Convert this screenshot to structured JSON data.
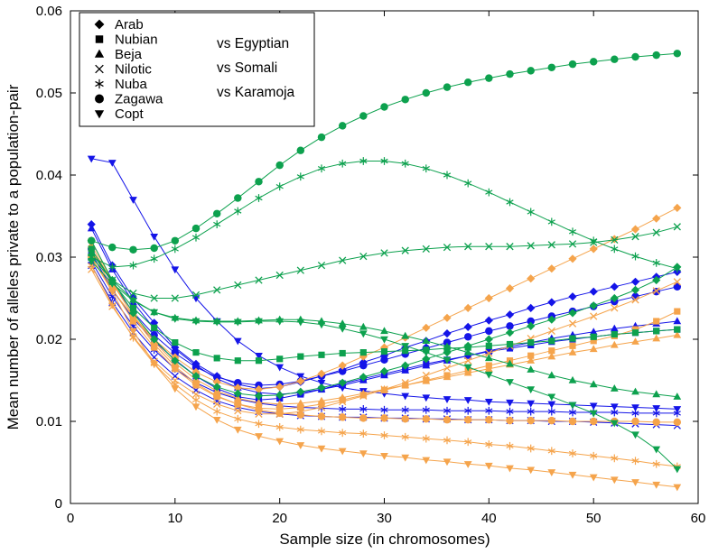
{
  "chart_data": {
    "type": "line",
    "title": "",
    "xlabel": "Sample size (in chromosomes)",
    "ylabel": "Mean number of alleles private to a population-pair",
    "xlim": [
      0,
      60
    ],
    "ylim": [
      0,
      0.06
    ],
    "grid": false,
    "xticks": [
      0,
      10,
      20,
      30,
      40,
      50,
      60
    ],
    "xtick_labels": [
      "0",
      "10",
      "20",
      "30",
      "40",
      "50",
      "60"
    ],
    "yticks": [
      0,
      0.01,
      0.02,
      0.03,
      0.04,
      0.05,
      0.06
    ],
    "ytick_labels": [
      "0",
      "0.01",
      "0.02",
      "0.03",
      "0.04",
      "0.05",
      "0.06"
    ],
    "colors": {
      "egyptian": "#1414e8",
      "somali": "#f5a44c",
      "karamoja": "#0da14e",
      "legend_marker": "#000000"
    },
    "legend": {
      "position": "top-left",
      "populations": [
        {
          "label": "Arab",
          "marker": "diamond"
        },
        {
          "label": "Nubian",
          "marker": "square"
        },
        {
          "label": "Beja",
          "marker": "triangle-up"
        },
        {
          "label": "Nilotic",
          "marker": "x"
        },
        {
          "label": "Nuba",
          "marker": "asterisk"
        },
        {
          "label": "Zagawa",
          "marker": "circle"
        },
        {
          "label": "Copt",
          "marker": "triangle-down"
        }
      ],
      "comparisons": [
        {
          "label": "vs Egyptian",
          "color": "#1414e8"
        },
        {
          "label": "vs Somali",
          "color": "#f5a44c"
        },
        {
          "label": "vs Karamoja",
          "color": "#0da14e"
        }
      ]
    },
    "x": [
      2,
      4,
      6,
      8,
      10,
      12,
      14,
      16,
      18,
      20,
      22,
      24,
      26,
      28,
      30,
      32,
      34,
      36,
      38,
      40,
      42,
      44,
      46,
      48,
      50,
      52,
      54,
      56,
      58
    ],
    "series": [
      {
        "name": "Arab vs Egyptian",
        "marker": "diamond",
        "color": "#1414e8",
        "values": [
          0.034,
          0.029,
          0.025,
          0.022,
          0.019,
          0.017,
          0.0155,
          0.0145,
          0.014,
          0.0142,
          0.0148,
          0.0155,
          0.0163,
          0.0172,
          0.018,
          0.019,
          0.0198,
          0.0207,
          0.0215,
          0.0223,
          0.023,
          0.0238,
          0.0245,
          0.0252,
          0.0258,
          0.0264,
          0.027,
          0.0276,
          0.0282
        ]
      },
      {
        "name": "Nubian vs Egyptian",
        "marker": "square",
        "color": "#1414e8",
        "values": [
          0.0305,
          0.026,
          0.0225,
          0.0198,
          0.0175,
          0.0155,
          0.014,
          0.013,
          0.0126,
          0.0128,
          0.0133,
          0.0139,
          0.0146,
          0.0152,
          0.0158,
          0.0164,
          0.017,
          0.0175,
          0.018,
          0.0185,
          0.0189,
          0.0193,
          0.0197,
          0.02,
          0.0203,
          0.0206,
          0.0208,
          0.021,
          0.0212
        ]
      },
      {
        "name": "Beja vs Egyptian",
        "marker": "triangle-up",
        "color": "#1414e8",
        "values": [
          0.0335,
          0.0285,
          0.0245,
          0.0213,
          0.0188,
          0.0168,
          0.0152,
          0.0141,
          0.0135,
          0.0133,
          0.0135,
          0.0139,
          0.0144,
          0.015,
          0.0156,
          0.0162,
          0.0168,
          0.0174,
          0.018,
          0.0186,
          0.0191,
          0.0196,
          0.0201,
          0.0205,
          0.0209,
          0.0213,
          0.0216,
          0.0219,
          0.0222
        ]
      },
      {
        "name": "Nilotic vs Egyptian",
        "marker": "x",
        "color": "#1414e8",
        "values": [
          0.029,
          0.0245,
          0.0208,
          0.0178,
          0.0155,
          0.0138,
          0.0125,
          0.0117,
          0.0112,
          0.0109,
          0.0107,
          0.0106,
          0.0105,
          0.0105,
          0.0104,
          0.0104,
          0.0103,
          0.0103,
          0.0102,
          0.0102,
          0.0101,
          0.0101,
          0.01,
          0.01,
          0.0099,
          0.0098,
          0.0097,
          0.0096,
          0.0095
        ]
      },
      {
        "name": "Nuba vs Egyptian",
        "marker": "asterisk",
        "color": "#1414e8",
        "values": [
          0.0295,
          0.0252,
          0.0216,
          0.0187,
          0.0164,
          0.0147,
          0.0135,
          0.0127,
          0.0122,
          0.0119,
          0.0117,
          0.0116,
          0.0115,
          0.0115,
          0.0114,
          0.0114,
          0.0114,
          0.0113,
          0.0113,
          0.0113,
          0.0112,
          0.0112,
          0.0112,
          0.0111,
          0.0111,
          0.0111,
          0.011,
          0.011,
          0.011
        ]
      },
      {
        "name": "Zagawa vs Egyptian",
        "marker": "circle",
        "color": "#1414e8",
        "values": [
          0.031,
          0.0268,
          0.0233,
          0.0205,
          0.0183,
          0.0166,
          0.0154,
          0.0147,
          0.0144,
          0.0145,
          0.0149,
          0.0155,
          0.0161,
          0.0168,
          0.0175,
          0.0182,
          0.0189,
          0.0196,
          0.0203,
          0.021,
          0.0216,
          0.0222,
          0.0228,
          0.0234,
          0.024,
          0.0246,
          0.0252,
          0.0258,
          0.0264
        ]
      },
      {
        "name": "Copt vs Egyptian",
        "marker": "triangle-down",
        "color": "#1414e8",
        "values": [
          0.042,
          0.0415,
          0.037,
          0.0325,
          0.0285,
          0.025,
          0.0222,
          0.0198,
          0.018,
          0.0166,
          0.0155,
          0.0147,
          0.0141,
          0.0137,
          0.0134,
          0.0131,
          0.0129,
          0.0127,
          0.0126,
          0.0124,
          0.0123,
          0.0122,
          0.0121,
          0.012,
          0.0119,
          0.0118,
          0.0117,
          0.0116,
          0.0115
        ]
      },
      {
        "name": "Arab vs Somali",
        "marker": "diamond",
        "color": "#f5a44c",
        "values": [
          0.03,
          0.026,
          0.0228,
          0.02,
          0.0178,
          0.016,
          0.0148,
          0.0141,
          0.0139,
          0.0142,
          0.0149,
          0.0158,
          0.0168,
          0.0179,
          0.019,
          0.0202,
          0.0214,
          0.0226,
          0.0238,
          0.025,
          0.0262,
          0.0274,
          0.0286,
          0.0298,
          0.031,
          0.0322,
          0.0334,
          0.0347,
          0.036
        ]
      },
      {
        "name": "Nubian vs Somali",
        "marker": "square",
        "color": "#f5a44c",
        "values": [
          0.031,
          0.0262,
          0.0222,
          0.019,
          0.0164,
          0.0144,
          0.013,
          0.0121,
          0.0116,
          0.0115,
          0.0117,
          0.0121,
          0.0126,
          0.0132,
          0.0138,
          0.0144,
          0.015,
          0.0156,
          0.0162,
          0.0168,
          0.0174,
          0.018,
          0.0186,
          0.0192,
          0.0198,
          0.0204,
          0.0212,
          0.0222,
          0.0234
        ]
      },
      {
        "name": "Beja vs Somali",
        "marker": "triangle-up",
        "color": "#f5a44c",
        "values": [
          0.0315,
          0.0268,
          0.0229,
          0.0197,
          0.0171,
          0.0151,
          0.0137,
          0.0128,
          0.0123,
          0.0121,
          0.0122,
          0.0125,
          0.0129,
          0.0134,
          0.0139,
          0.0144,
          0.0149,
          0.0154,
          0.0159,
          0.0164,
          0.0169,
          0.0174,
          0.0179,
          0.0184,
          0.0188,
          0.0193,
          0.0197,
          0.0201,
          0.0205
        ]
      },
      {
        "name": "Nilotic vs Somali",
        "marker": "x",
        "color": "#f5a44c",
        "values": [
          0.0285,
          0.024,
          0.0203,
          0.0173,
          0.015,
          0.0133,
          0.0121,
          0.0113,
          0.0109,
          0.0109,
          0.0112,
          0.0117,
          0.0124,
          0.0131,
          0.0139,
          0.0147,
          0.0156,
          0.0165,
          0.0174,
          0.0183,
          0.0192,
          0.0201,
          0.021,
          0.0219,
          0.0228,
          0.0238,
          0.0248,
          0.0259,
          0.027
        ]
      },
      {
        "name": "Nuba vs Somali",
        "marker": "asterisk",
        "color": "#f5a44c",
        "values": [
          0.029,
          0.0242,
          0.0202,
          0.017,
          0.0145,
          0.0126,
          0.0112,
          0.0103,
          0.0097,
          0.0093,
          0.009,
          0.0088,
          0.0086,
          0.0085,
          0.0083,
          0.0081,
          0.0079,
          0.0077,
          0.0075,
          0.0072,
          0.007,
          0.0067,
          0.0064,
          0.0061,
          0.0058,
          0.0055,
          0.0052,
          0.0048,
          0.0045
        ]
      },
      {
        "name": "Zagawa vs Somali",
        "marker": "circle",
        "color": "#f5a44c",
        "values": [
          0.032,
          0.027,
          0.0228,
          0.0194,
          0.0167,
          0.0146,
          0.0131,
          0.0121,
          0.0114,
          0.011,
          0.0108,
          0.0106,
          0.0105,
          0.0104,
          0.0104,
          0.0103,
          0.0103,
          0.0102,
          0.0102,
          0.0102,
          0.0101,
          0.0101,
          0.0101,
          0.01,
          0.01,
          0.01,
          0.01,
          0.0099,
          0.0099
        ]
      },
      {
        "name": "Copt vs Somali",
        "marker": "triangle-down",
        "color": "#f5a44c",
        "values": [
          0.03,
          0.0258,
          0.021,
          0.017,
          0.014,
          0.0118,
          0.0102,
          0.009,
          0.0082,
          0.0076,
          0.0071,
          0.0067,
          0.0064,
          0.0061,
          0.0058,
          0.0056,
          0.0053,
          0.0051,
          0.0048,
          0.0046,
          0.0043,
          0.0041,
          0.0038,
          0.0035,
          0.0032,
          0.0029,
          0.0026,
          0.0023,
          0.002
        ]
      },
      {
        "name": "Arab vs Karamoja",
        "marker": "diamond",
        "color": "#0da14e",
        "values": [
          0.032,
          0.0272,
          0.0232,
          0.02,
          0.0174,
          0.0155,
          0.0142,
          0.0134,
          0.0131,
          0.0132,
          0.0136,
          0.0141,
          0.0147,
          0.0154,
          0.0161,
          0.0168,
          0.0176,
          0.0184,
          0.0192,
          0.02,
          0.0208,
          0.0216,
          0.0224,
          0.0232,
          0.0241,
          0.025,
          0.026,
          0.0272,
          0.0288
        ]
      },
      {
        "name": "Nubian vs Karamoja",
        "marker": "square",
        "color": "#0da14e",
        "values": [
          0.031,
          0.027,
          0.0238,
          0.0214,
          0.0196,
          0.0184,
          0.0177,
          0.0174,
          0.0174,
          0.0176,
          0.0179,
          0.0181,
          0.0183,
          0.0184,
          0.0185,
          0.0186,
          0.0187,
          0.0189,
          0.019,
          0.0192,
          0.0194,
          0.0196,
          0.0198,
          0.0201,
          0.0203,
          0.0206,
          0.0208,
          0.021,
          0.0212
        ]
      },
      {
        "name": "Beja vs Karamoja",
        "marker": "triangle-up",
        "color": "#0da14e",
        "values": [
          0.0305,
          0.0272,
          0.0248,
          0.0233,
          0.0226,
          0.0223,
          0.0222,
          0.0222,
          0.0223,
          0.0224,
          0.0224,
          0.0222,
          0.0219,
          0.0215,
          0.021,
          0.0204,
          0.0198,
          0.0191,
          0.0184,
          0.0177,
          0.017,
          0.0163,
          0.0156,
          0.015,
          0.0145,
          0.014,
          0.0136,
          0.0133,
          0.013
        ]
      },
      {
        "name": "Nilotic vs Karamoja",
        "marker": "x",
        "color": "#0da14e",
        "values": [
          0.03,
          0.0272,
          0.0256,
          0.025,
          0.025,
          0.0254,
          0.026,
          0.0266,
          0.0272,
          0.0278,
          0.0284,
          0.029,
          0.0296,
          0.0301,
          0.0305,
          0.0308,
          0.031,
          0.0312,
          0.0313,
          0.0313,
          0.0313,
          0.0314,
          0.0315,
          0.0316,
          0.0318,
          0.0321,
          0.0325,
          0.033,
          0.0337
        ]
      },
      {
        "name": "Nuba vs Karamoja",
        "marker": "asterisk",
        "color": "#0da14e",
        "values": [
          0.03,
          0.0288,
          0.029,
          0.0298,
          0.031,
          0.0324,
          0.034,
          0.0356,
          0.0372,
          0.0386,
          0.0398,
          0.0408,
          0.0414,
          0.0417,
          0.0417,
          0.0414,
          0.0408,
          0.04,
          0.039,
          0.0379,
          0.0367,
          0.0355,
          0.0343,
          0.0331,
          0.032,
          0.031,
          0.0301,
          0.0293,
          0.0286
        ]
      },
      {
        "name": "Zagawa vs Karamoja",
        "marker": "circle",
        "color": "#0da14e",
        "values": [
          0.032,
          0.0312,
          0.0309,
          0.0311,
          0.032,
          0.0335,
          0.0353,
          0.0372,
          0.0392,
          0.0412,
          0.043,
          0.0446,
          0.046,
          0.0472,
          0.0483,
          0.0492,
          0.05,
          0.0507,
          0.0513,
          0.0518,
          0.0523,
          0.0527,
          0.0531,
          0.0535,
          0.0538,
          0.0541,
          0.0544,
          0.0546,
          0.0548
        ]
      },
      {
        "name": "Copt vs Karamoja",
        "marker": "triangle-down",
        "color": "#0da14e",
        "values": [
          0.0295,
          0.0268,
          0.0247,
          0.0233,
          0.0225,
          0.0222,
          0.0221,
          0.0221,
          0.0222,
          0.0222,
          0.0221,
          0.0218,
          0.0213,
          0.0207,
          0.02,
          0.0192,
          0.0184,
          0.0175,
          0.0166,
          0.0157,
          0.0148,
          0.0139,
          0.013,
          0.012,
          0.011,
          0.0098,
          0.0084,
          0.0066,
          0.0042
        ]
      }
    ]
  }
}
